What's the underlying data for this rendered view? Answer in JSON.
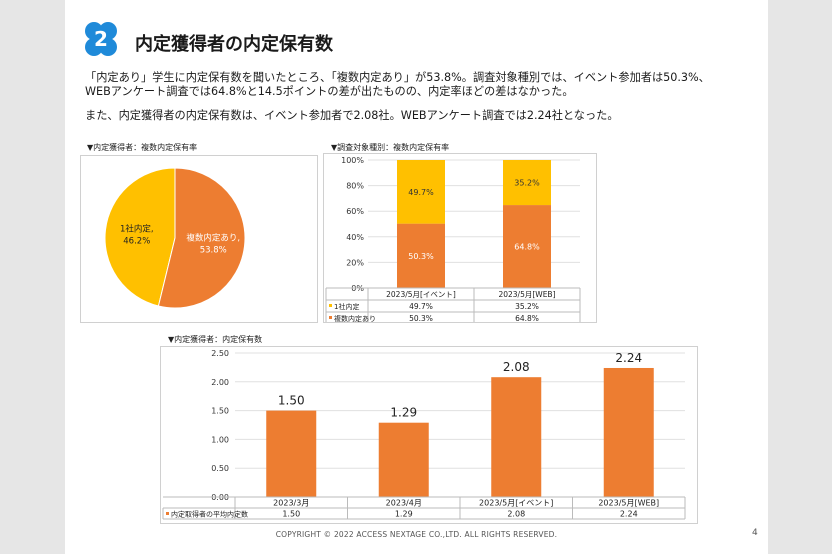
{
  "header": {
    "badge_number": "2",
    "title": "内定獲得者の内定保有数",
    "badge_color": "#1f8ad9"
  },
  "paragraphs": [
    "「内定あり」学生に内定保有数を聞いたところ、「複数内定あり」が53.8%。調査対象種別では、イベント参加者は50.3%、",
    "WEBアンケート調査では64.8%と14.5ポイントの差が出たものの、内定率ほどの差はなかった。",
    "また、内定獲得者の内定保有数は、イベント参加者で2.08社。WEBアンケート調査では2.24社となった。"
  ],
  "colors": {
    "orange": "#ed7d31",
    "yellow": "#ffc000"
  },
  "chart_data": [
    {
      "type": "pie",
      "title": "▼内定獲得者：複数内定保有率",
      "slices": [
        {
          "label": "1社内定,",
          "value": 46.2,
          "value_label": "46.2%",
          "color": "#ffc000"
        },
        {
          "label": "複数内定あり,",
          "value": 53.8,
          "value_label": "53.8%",
          "color": "#ed7d31"
        }
      ]
    },
    {
      "type": "bar",
      "stacked": true,
      "title": "▼調査対象種別：複数内定保有率",
      "categories": [
        "2023/5月[イベント]",
        "2023/5月[WEB]"
      ],
      "yticks": [
        "100%",
        "80%",
        "60%",
        "40%",
        "20%",
        "0%"
      ],
      "ylim": [
        0,
        100
      ],
      "series": [
        {
          "name": "1社内定",
          "values": [
            49.7,
            35.2
          ],
          "labels": [
            "49.7%",
            "35.2%"
          ],
          "color": "#ffc000"
        },
        {
          "name": "複数内定あり",
          "values": [
            50.3,
            64.8
          ],
          "labels": [
            "50.3%",
            "64.8%"
          ],
          "color": "#ed7d31"
        }
      ],
      "legend": "table-below"
    },
    {
      "type": "bar",
      "title": "▼内定獲得者：内定保有数",
      "categories": [
        "2023/3月",
        "2023/4月",
        "2023/5月[イベント]",
        "2023/5月[WEB]"
      ],
      "values": [
        1.5,
        1.29,
        2.08,
        2.24
      ],
      "value_labels": [
        "1.50",
        "1.29",
        "2.08",
        "2.24"
      ],
      "yticks": [
        "2.50",
        "2.00",
        "1.50",
        "1.00",
        "0.50",
        "0.00"
      ],
      "ylim": [
        0,
        2.5
      ],
      "series_name": "内定取得者の平均内定数",
      "color": "#ed7d31",
      "legend": "table-below"
    }
  ],
  "footer": {
    "copyright": "COPYRIGHT © 2022 ACCESS NEXTAGE CO.,LTD. ALL RIGHTS RESERVED.",
    "page": "4"
  }
}
